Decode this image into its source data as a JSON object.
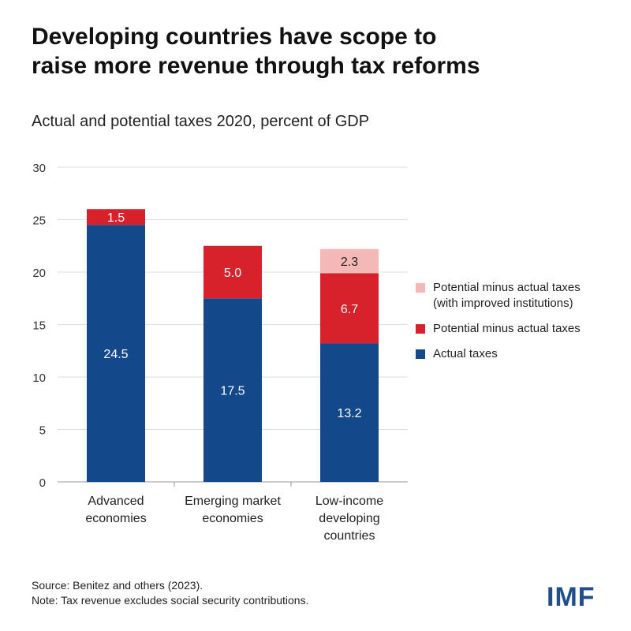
{
  "header": {
    "title_line1": "Developing countries have scope to",
    "title_line2": "raise more revenue through tax reforms",
    "subtitle": "Actual and potential taxes 2020, percent of GDP"
  },
  "chart_data": {
    "type": "bar",
    "stacked": true,
    "categories": [
      [
        "Advanced",
        "economies"
      ],
      [
        "Emerging market",
        "economies"
      ],
      [
        "Low-income",
        "developing",
        "countries"
      ]
    ],
    "series": [
      {
        "name": "Actual taxes",
        "color": "#13488a",
        "values": [
          24.5,
          17.5,
          13.2
        ],
        "labels": [
          "24.5",
          "17.5",
          "13.2"
        ]
      },
      {
        "name": "Potential minus actual taxes",
        "color": "#d8222b",
        "values": [
          1.5,
          5.0,
          6.7
        ],
        "labels": [
          "1.5",
          "5.0",
          "6.7"
        ]
      },
      {
        "name": "Potential minus actual taxes (with improved institutions)",
        "color": "#f4b8b6",
        "values": [
          0,
          0,
          2.3
        ],
        "labels": [
          "",
          "",
          "2.3"
        ]
      }
    ],
    "yticks": [
      "0",
      "5",
      "10",
      "15",
      "20",
      "25",
      "30"
    ],
    "ylim": [
      0,
      30
    ],
    "grid": true,
    "legend_position": "right"
  },
  "legend": [
    {
      "lines": [
        "Potential minus actual taxes",
        "(with improved institutions)"
      ],
      "color": "#f4b8b6"
    },
    {
      "lines": [
        "Potential minus actual taxes"
      ],
      "color": "#d8222b"
    },
    {
      "lines": [
        "Actual taxes"
      ],
      "color": "#13488a"
    }
  ],
  "footer": {
    "source": "Source: Benitez and others (2023).",
    "note": "Note: Tax revenue excludes social security contributions."
  },
  "logo": "IMF"
}
